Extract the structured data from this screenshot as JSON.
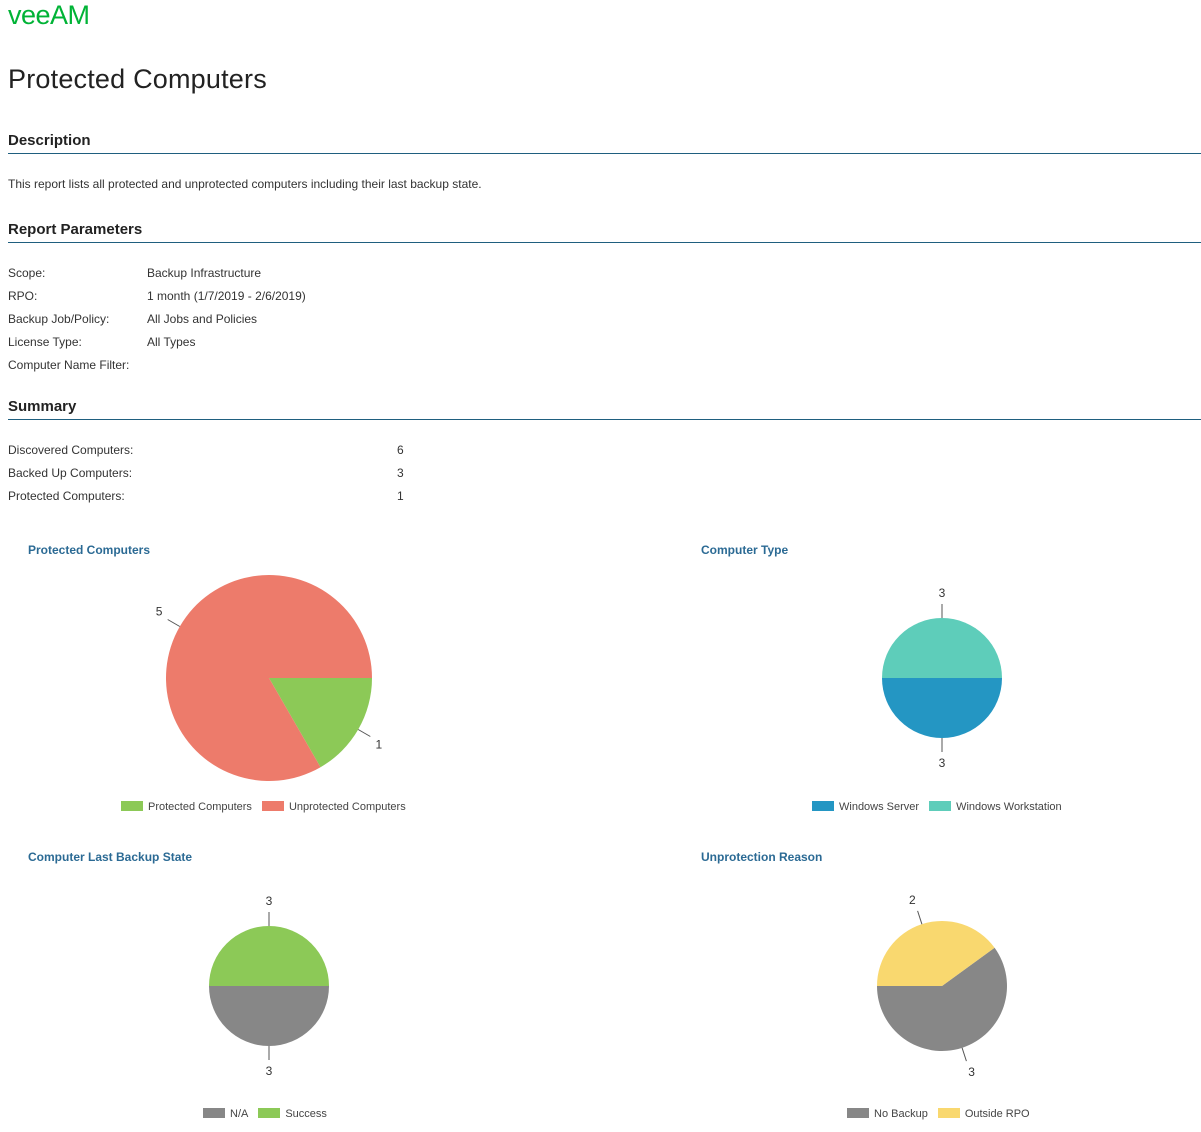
{
  "logo": {
    "text": "veeAM",
    "color": "#00b336"
  },
  "page_title": "Protected Computers",
  "sections": {
    "description": "Description",
    "parameters": "Report Parameters",
    "summary": "Summary"
  },
  "description_text": "This report lists all protected and unprotected computers including their last backup state.",
  "parameters": [
    {
      "label": "Scope:",
      "value": "Backup Infrastructure"
    },
    {
      "label": "RPO:",
      "value": "1 month (1/7/2019 - 2/6/2019)"
    },
    {
      "label": "Backup Job/Policy:",
      "value": "All Jobs and Policies"
    },
    {
      "label": "License Type:",
      "value": "All Types"
    },
    {
      "label": "Computer Name Filter:",
      "value": ""
    }
  ],
  "summary": [
    {
      "label": "Discovered Computers:",
      "value": "6"
    },
    {
      "label": "Backed Up Computers:",
      "value": "3"
    },
    {
      "label": "Protected Computers:",
      "value": "1"
    }
  ],
  "chart_data": [
    {
      "type": "pie",
      "title": "Protected Computers",
      "slices": [
        {
          "name": "Protected Computers",
          "value": 1,
          "color": "#8cc957"
        },
        {
          "name": "Unprotected Computers",
          "value": 5,
          "color": "#ed7b6b"
        }
      ],
      "legend_position": "bottom"
    },
    {
      "type": "pie",
      "title": "Computer Type",
      "slices": [
        {
          "name": "Windows Server",
          "value": 3,
          "color": "#2496c3"
        },
        {
          "name": "Windows Workstation",
          "value": 3,
          "color": "#5ecdba"
        }
      ],
      "legend_position": "bottom"
    },
    {
      "type": "pie",
      "title": "Computer Last Backup State",
      "slices": [
        {
          "name": "N/A",
          "value": 3,
          "color": "#878787"
        },
        {
          "name": "Success",
          "value": 3,
          "color": "#8cc957"
        }
      ],
      "legend_position": "bottom"
    },
    {
      "type": "pie",
      "title": "Unprotection Reason",
      "slices": [
        {
          "name": "No Backup",
          "value": 3,
          "color": "#878787"
        },
        {
          "name": "Outside RPO",
          "value": 2,
          "color": "#f9d86f"
        }
      ],
      "legend_position": "bottom"
    }
  ]
}
